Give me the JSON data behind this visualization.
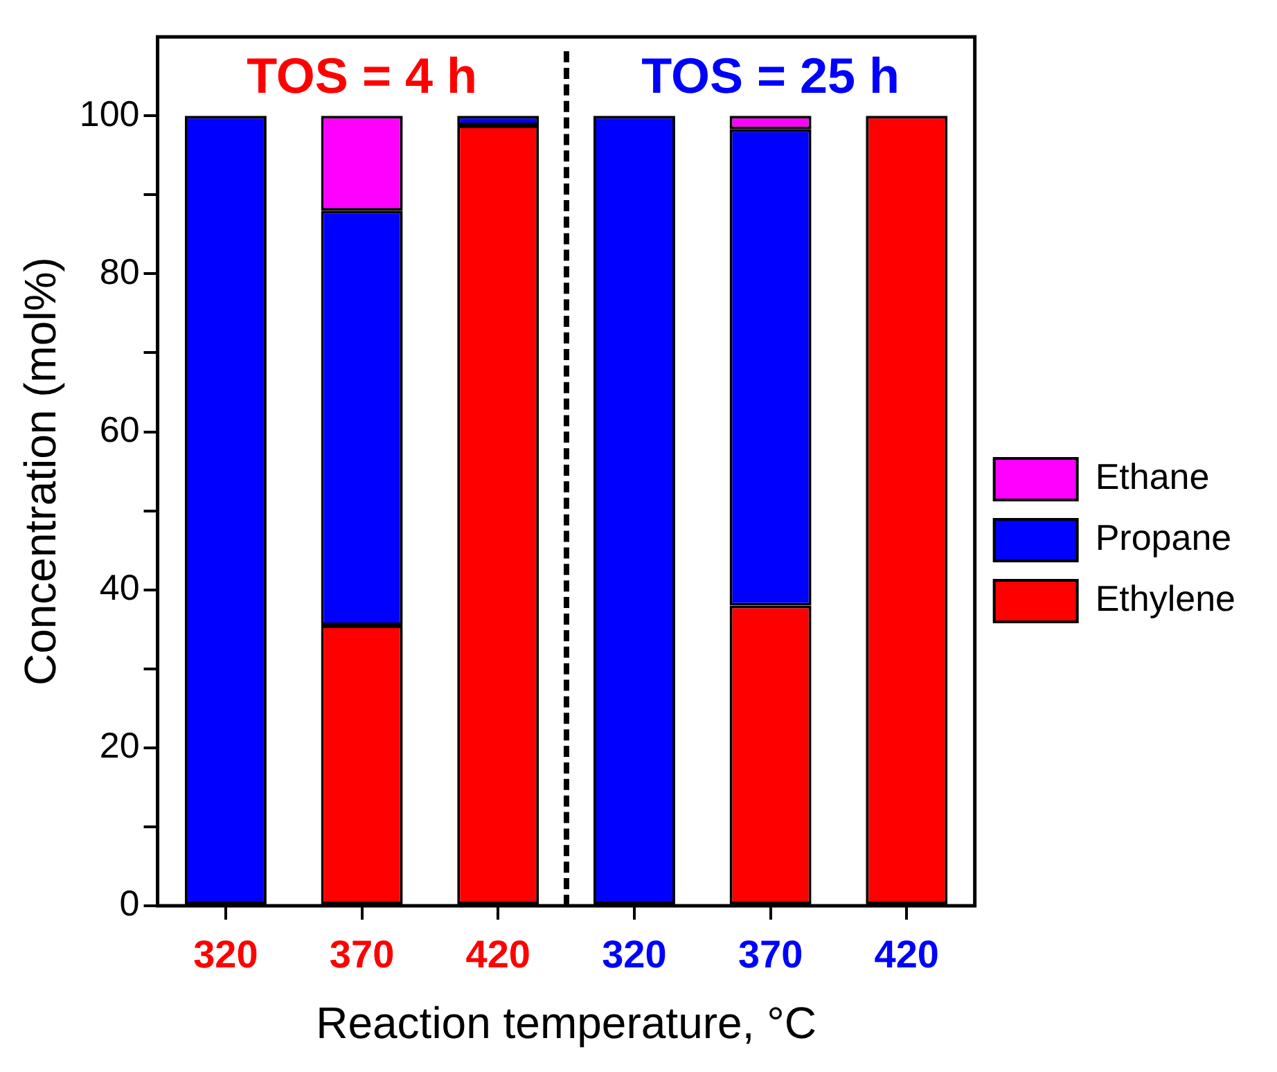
{
  "chart_data": {
    "type": "bar",
    "stacked": true,
    "xlabel": "Reaction temperature, °C",
    "ylabel": "Concentration (mol%)",
    "categories": [
      "320",
      "370",
      "420",
      "320",
      "370",
      "420"
    ],
    "series": [
      {
        "name": "Ethylene",
        "color": "#ff0000",
        "values": [
          0,
          35.5,
          98.8,
          0,
          38,
          100
        ]
      },
      {
        "name": "Propane",
        "color": "#0000ff",
        "values": [
          100,
          52.5,
          1.2,
          100,
          60.3,
          0
        ]
      },
      {
        "name": "Ethane",
        "color": "#ff00ff",
        "values": [
          0,
          12,
          0,
          0,
          1.7,
          0
        ]
      }
    ],
    "ylim": [
      0,
      110
    ],
    "yticks": [
      0,
      {
        "value": 10,
        "label": null
      },
      20,
      {
        "value": 30,
        "label": null
      },
      40,
      {
        "value": 50,
        "label": null
      },
      60,
      {
        "value": 70,
        "label": null
      },
      80,
      {
        "value": 90,
        "label": null
      },
      100
    ],
    "annotations": [
      "TOS = 4 h",
      "TOS = 25 h"
    ],
    "grid": false,
    "legend": "right"
  }
}
